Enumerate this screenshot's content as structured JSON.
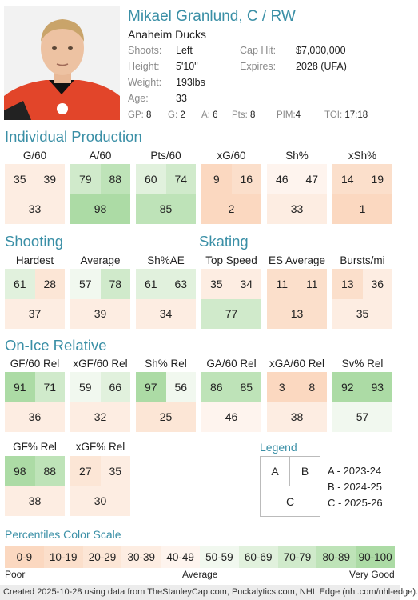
{
  "player": {
    "name": "Mikael Granlund, C / RW",
    "team": "Anaheim Ducks",
    "shoots_label": "Shoots:",
    "shoots": "Left",
    "height_label": "Height:",
    "height": "5'10\"",
    "weight_label": "Weight:",
    "weight": "193lbs",
    "age_label": "Age:",
    "age": "33",
    "cap_hit_label": "Cap Hit:",
    "cap_hit": "$7,000,000",
    "expires_label": "Expires:",
    "expires": "2028 (UFA)",
    "photo_icon": "player-headshot"
  },
  "season_stats": [
    {
      "label": "GP:",
      "value": "8"
    },
    {
      "label": "G:",
      "value": "2"
    },
    {
      "label": "A:",
      "value": "6"
    },
    {
      "label": "Pts:",
      "value": "8"
    },
    {
      "label": "PIM:",
      "value": "4"
    },
    {
      "label": "TOI:",
      "value": "17:18"
    }
  ],
  "sections": {
    "individual": "Individual Production",
    "shooting": "Shooting",
    "skating": "Skating",
    "onice": "On-Ice Relative",
    "legend": "Legend",
    "scale": "Percentiles Color Scale"
  },
  "metrics": [
    {
      "name": "G/60",
      "a": 35,
      "b": 39,
      "c": 33
    },
    {
      "name": "A/60",
      "a": 79,
      "b": 88,
      "c": 98
    },
    {
      "name": "Pts/60",
      "a": 60,
      "b": 74,
      "c": 85
    },
    {
      "name": "xG/60",
      "a": 9,
      "b": 16,
      "c": 2
    },
    {
      "name": "Sh%",
      "a": 46,
      "b": 47,
      "c": 33
    },
    {
      "name": "xSh%",
      "a": 14,
      "b": 19,
      "c": 1
    },
    {
      "name": "Hardest",
      "a": 61,
      "b": 28,
      "c": 37
    },
    {
      "name": "Average",
      "a": 57,
      "b": 78,
      "c": 39
    },
    {
      "name": "Sh%AE",
      "a": 61,
      "b": 63,
      "c": 34
    },
    {
      "name": "Top Speed",
      "a": 35,
      "b": 34,
      "c": 77
    },
    {
      "name": "ES Average",
      "a": 11,
      "b": 11,
      "c": 13
    },
    {
      "name": "Bursts/mi",
      "a": 13,
      "b": 36,
      "c": 35
    },
    {
      "name": "GF/60 Rel",
      "a": 91,
      "b": 71,
      "c": 36
    },
    {
      "name": "xGF/60 Rel",
      "a": 59,
      "b": 66,
      "c": 32
    },
    {
      "name": "Sh% Rel",
      "a": 97,
      "b": 56,
      "c": 25
    },
    {
      "name": "GA/60 Rel",
      "a": 86,
      "b": 85,
      "c": 46
    },
    {
      "name": "xGA/60 Rel",
      "a": 3,
      "b": 8,
      "c": 38
    },
    {
      "name": "Sv% Rel",
      "a": 92,
      "b": 93,
      "c": 57
    },
    {
      "name": "GF% Rel",
      "a": 98,
      "b": 88,
      "c": 38
    },
    {
      "name": "xGF% Rel",
      "a": 27,
      "b": 35,
      "c": 30
    }
  ],
  "legend": {
    "a": "A",
    "b": "B",
    "c": "C",
    "a_text": "A - 2023-24",
    "b_text": "B - 2024-25",
    "c_text": "C - 2025-26"
  },
  "scale": {
    "bins": [
      "0-9",
      "10-19",
      "20-29",
      "30-39",
      "40-49",
      "50-59",
      "60-69",
      "70-79",
      "80-89",
      "90-100"
    ],
    "colors": [
      "#fbd8c0",
      "#fbdfcb",
      "#fce6d6",
      "#fdede2",
      "#fef4ee",
      "#f1f8ef",
      "#e1f1dd",
      "#d0eacb",
      "#bee3b8",
      "#acdba5"
    ],
    "low": "Poor",
    "mid": "Average",
    "high": "Very Good"
  },
  "footer": "Created 2025-10-28 using data from TheStanleyCap.com, Puckalytics.com, NHL Edge (nhl.com/nhl-edge)."
}
